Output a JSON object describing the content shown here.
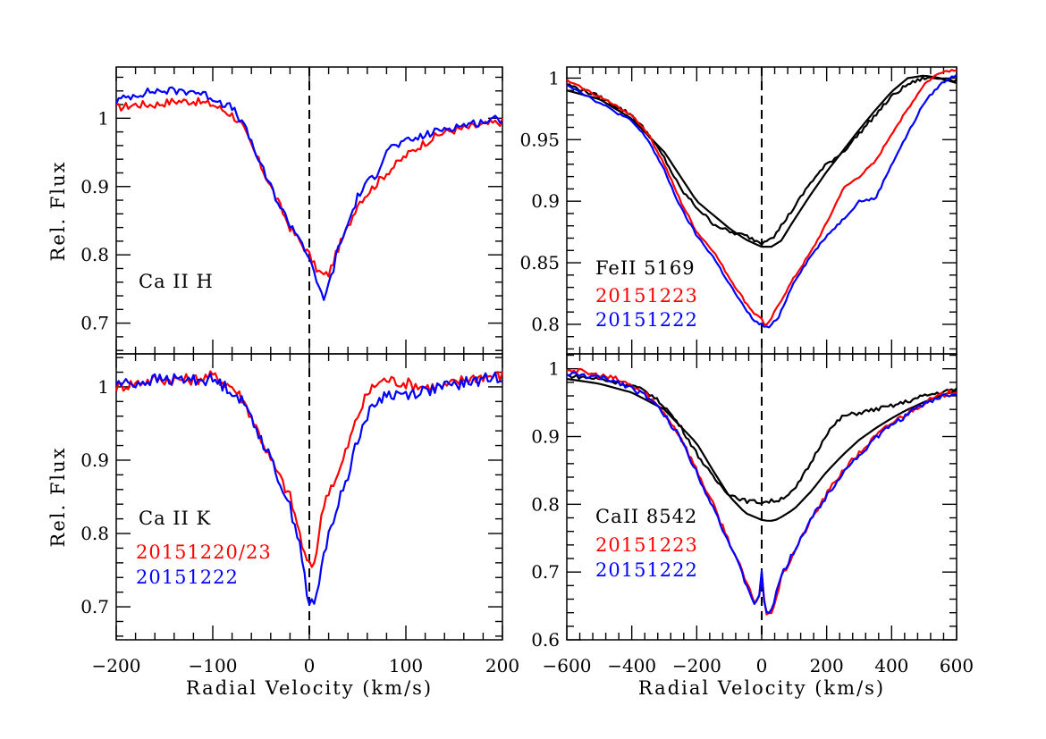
{
  "figure": {
    "xlabel": "Radial Velocity (km/s)",
    "ylabel": "Rel. Flux"
  },
  "chart_data": [
    {
      "id": "caH",
      "type": "line",
      "xlim": [
        -200,
        200
      ],
      "ylim": [
        0.655,
        1.075
      ],
      "xticks": [
        -200,
        -100,
        0,
        100,
        200
      ],
      "xticklabels": [],
      "yticks": [
        0.7,
        0.8,
        0.9,
        1.0
      ],
      "yticklabels": [
        "0.7",
        "0.8",
        "0.9",
        "1"
      ],
      "line_label": "Ca  II  H",
      "legend": [],
      "series": [
        {
          "name": "red",
          "color": "#ff0000",
          "noise": 0.006,
          "x": [
            -200,
            -180,
            -160,
            -140,
            -120,
            -100,
            -80,
            -70,
            -60,
            -50,
            -40,
            -30,
            -20,
            -10,
            0,
            5,
            10,
            15,
            20,
            25,
            30,
            40,
            50,
            60,
            70,
            80,
            100,
            120,
            140,
            160,
            180,
            200
          ],
          "y": [
            1.015,
            1.02,
            1.02,
            1.025,
            1.025,
            1.02,
            1.005,
            0.99,
            0.96,
            0.93,
            0.9,
            0.87,
            0.84,
            0.82,
            0.8,
            0.785,
            0.775,
            0.77,
            0.772,
            0.79,
            0.81,
            0.84,
            0.875,
            0.89,
            0.905,
            0.92,
            0.945,
            0.965,
            0.98,
            0.985,
            0.99,
            0.995
          ]
        },
        {
          "name": "blue",
          "color": "#0000ff",
          "noise": 0.006,
          "x": [
            -200,
            -180,
            -160,
            -140,
            -120,
            -100,
            -80,
            -70,
            -60,
            -50,
            -40,
            -30,
            -20,
            -10,
            0,
            5,
            10,
            15,
            20,
            25,
            30,
            40,
            50,
            60,
            70,
            80,
            100,
            120,
            140,
            160,
            180,
            200
          ],
          "y": [
            1.025,
            1.035,
            1.04,
            1.04,
            1.04,
            1.03,
            1.015,
            0.995,
            0.965,
            0.93,
            0.9,
            0.87,
            0.845,
            0.825,
            0.795,
            0.77,
            0.75,
            0.738,
            0.755,
            0.78,
            0.81,
            0.845,
            0.885,
            0.905,
            0.92,
            0.955,
            0.965,
            0.975,
            0.985,
            0.99,
            0.995,
            1.0
          ]
        }
      ]
    },
    {
      "id": "caK",
      "type": "line",
      "xlim": [
        -200,
        200
      ],
      "ylim": [
        0.655,
        1.045
      ],
      "xticks": [
        -200,
        -100,
        0,
        100,
        200
      ],
      "xticklabels": [
        "-200",
        "-100",
        "0",
        "100",
        "200"
      ],
      "yticks": [
        0.7,
        0.8,
        0.9,
        1.0
      ],
      "yticklabels": [
        "0.7",
        "0.8",
        "0.9",
        "1"
      ],
      "line_label": "Ca  II  K",
      "legend": [
        {
          "text": "20151220/23",
          "color": "#ff0000"
        },
        {
          "text": "20151222",
          "color": "#0000ff"
        }
      ],
      "series": [
        {
          "name": "red",
          "color": "#ff0000",
          "noise": 0.008,
          "x": [
            -200,
            -180,
            -160,
            -140,
            -120,
            -100,
            -80,
            -70,
            -60,
            -50,
            -40,
            -30,
            -20,
            -10,
            -5,
            0,
            5,
            10,
            15,
            20,
            30,
            40,
            50,
            60,
            70,
            80,
            100,
            120,
            140,
            160,
            180,
            200
          ],
          "y": [
            1.0,
            1.005,
            1.01,
            1.01,
            1.01,
            1.015,
            1.0,
            0.985,
            0.96,
            0.93,
            0.9,
            0.875,
            0.85,
            0.8,
            0.77,
            0.755,
            0.76,
            0.8,
            0.84,
            0.86,
            0.88,
            0.92,
            0.96,
            0.99,
            1.005,
            1.01,
            1.005,
            1.0,
            1.0,
            1.01,
            1.015,
            1.015
          ]
        },
        {
          "name": "blue",
          "color": "#0000ff",
          "noise": 0.008,
          "x": [
            -200,
            -180,
            -160,
            -140,
            -120,
            -100,
            -80,
            -70,
            -60,
            -50,
            -40,
            -30,
            -20,
            -10,
            -5,
            0,
            5,
            10,
            15,
            20,
            30,
            40,
            50,
            60,
            70,
            80,
            100,
            120,
            140,
            160,
            180,
            200
          ],
          "y": [
            1.005,
            1.005,
            1.01,
            1.01,
            1.01,
            1.01,
            0.995,
            0.98,
            0.96,
            0.93,
            0.9,
            0.87,
            0.835,
            0.79,
            0.74,
            0.702,
            0.705,
            0.73,
            0.77,
            0.8,
            0.84,
            0.88,
            0.93,
            0.96,
            0.98,
            0.99,
            0.99,
            0.995,
            1.0,
            1.005,
            1.01,
            1.015
          ]
        }
      ]
    },
    {
      "id": "fe",
      "type": "line",
      "xlim": [
        -600,
        600
      ],
      "ylim": [
        0.776,
        1.009
      ],
      "xticks": [
        -600,
        -400,
        -200,
        0,
        200,
        400,
        600
      ],
      "xticklabels": [],
      "yticks": [
        0.8,
        0.85,
        0.9,
        0.95,
        1.0
      ],
      "yticklabels": [
        "0.8",
        "0.85",
        "0.9",
        "0.95",
        "1"
      ],
      "line_label": "FeII  5169",
      "legend": [
        {
          "text": "20151223",
          "color": "#ff0000"
        },
        {
          "text": "20151222",
          "color": "#0000ff"
        }
      ],
      "series": [
        {
          "name": "black-observed",
          "color": "#000000",
          "noise": 0.0015,
          "x": [
            -600,
            -500,
            -400,
            -350,
            -300,
            -250,
            -200,
            -150,
            -100,
            -50,
            0,
            20,
            40,
            60,
            100,
            150,
            200,
            250,
            300,
            350,
            400,
            450,
            500,
            550,
            600
          ],
          "y": [
            0.995,
            0.985,
            0.97,
            0.955,
            0.935,
            0.91,
            0.895,
            0.882,
            0.875,
            0.872,
            0.866,
            0.87,
            0.872,
            0.88,
            0.895,
            0.915,
            0.93,
            0.94,
            0.955,
            0.97,
            0.985,
            0.995,
            1.0,
            1.0,
            0.998
          ]
        },
        {
          "name": "black-model",
          "color": "#000000",
          "noise": 0,
          "x": [
            -600,
            -500,
            -400,
            -300,
            -200,
            -100,
            -50,
            0,
            30,
            60,
            100,
            150,
            200,
            250,
            300,
            350,
            400,
            450,
            500,
            550,
            600
          ],
          "y": [
            0.99,
            0.983,
            0.967,
            0.94,
            0.9,
            0.878,
            0.869,
            0.863,
            0.863,
            0.868,
            0.885,
            0.905,
            0.924,
            0.941,
            0.958,
            0.974,
            0.989,
            1.0,
            1.002,
            1.0,
            0.996
          ]
        },
        {
          "name": "red",
          "color": "#ff0000",
          "noise": 0.001,
          "x": [
            -600,
            -500,
            -400,
            -350,
            -300,
            -250,
            -200,
            -150,
            -100,
            -50,
            -20,
            0,
            10,
            20,
            50,
            100,
            150,
            200,
            250,
            300,
            350,
            400,
            450,
            500,
            550,
            600
          ],
          "y": [
            0.998,
            0.985,
            0.97,
            0.955,
            0.93,
            0.9,
            0.875,
            0.86,
            0.838,
            0.818,
            0.808,
            0.805,
            0.798,
            0.8,
            0.815,
            0.838,
            0.858,
            0.882,
            0.91,
            0.92,
            0.932,
            0.955,
            0.975,
            0.995,
            1.005,
            1.007
          ]
        },
        {
          "name": "blue",
          "color": "#0000ff",
          "noise": 0.001,
          "x": [
            -600,
            -500,
            -400,
            -350,
            -300,
            -250,
            -200,
            -150,
            -100,
            -50,
            -20,
            0,
            10,
            20,
            50,
            100,
            150,
            200,
            250,
            300,
            350,
            400,
            450,
            500,
            550,
            600
          ],
          "y": [
            0.995,
            0.98,
            0.965,
            0.95,
            0.925,
            0.895,
            0.872,
            0.855,
            0.833,
            0.812,
            0.802,
            0.8,
            0.798,
            0.797,
            0.805,
            0.835,
            0.855,
            0.872,
            0.885,
            0.9,
            0.902,
            0.93,
            0.955,
            0.98,
            0.995,
            1.003
          ]
        }
      ]
    },
    {
      "id": "ca8542",
      "type": "line",
      "xlim": [
        -600,
        600
      ],
      "ylim": [
        0.6,
        1.022
      ],
      "xticks": [
        -600,
        -400,
        -200,
        0,
        200,
        400,
        600
      ],
      "xticklabels": [
        "-600",
        "-400",
        "-200",
        "0",
        "200",
        "400",
        "600"
      ],
      "yticks": [
        0.6,
        0.7,
        0.8,
        0.9,
        1.0
      ],
      "yticklabels": [
        "0.6",
        "0.7",
        "0.8",
        "0.9",
        "1"
      ],
      "line_label": "CaII  8542",
      "legend": [
        {
          "text": "20151223",
          "color": "#ff0000"
        },
        {
          "text": "20151222",
          "color": "#0000ff"
        }
      ],
      "series": [
        {
          "name": "black-observed",
          "color": "#000000",
          "noise": 0.003,
          "x": [
            -600,
            -500,
            -400,
            -350,
            -300,
            -250,
            -200,
            -150,
            -100,
            -50,
            0,
            50,
            100,
            150,
            200,
            250,
            300,
            350,
            400,
            450,
            500,
            550,
            600
          ],
          "y": [
            0.99,
            0.985,
            0.975,
            0.965,
            0.945,
            0.915,
            0.875,
            0.84,
            0.815,
            0.805,
            0.803,
            0.806,
            0.82,
            0.86,
            0.905,
            0.93,
            0.935,
            0.94,
            0.945,
            0.952,
            0.96,
            0.965,
            0.97
          ]
        },
        {
          "name": "black-model",
          "color": "#000000",
          "noise": 0,
          "x": [
            -600,
            -500,
            -400,
            -300,
            -200,
            -150,
            -100,
            -50,
            0,
            25,
            50,
            100,
            150,
            200,
            250,
            300,
            350,
            400,
            450,
            500,
            550,
            600
          ],
          "y": [
            0.985,
            0.978,
            0.965,
            0.94,
            0.89,
            0.85,
            0.812,
            0.787,
            0.777,
            0.775,
            0.778,
            0.793,
            0.818,
            0.848,
            0.873,
            0.895,
            0.912,
            0.927,
            0.94,
            0.951,
            0.96,
            0.968
          ]
        },
        {
          "name": "red",
          "color": "#ff0000",
          "noise": 0.004,
          "x": [
            -600,
            -550,
            -500,
            -450,
            -400,
            -350,
            -300,
            -250,
            -200,
            -150,
            -100,
            -60,
            -40,
            -20,
            -5,
            0,
            5,
            15,
            25,
            40,
            60,
            100,
            150,
            200,
            250,
            300,
            350,
            400,
            450,
            500,
            550,
            600
          ],
          "y": [
            1.0,
            0.995,
            0.99,
            0.985,
            0.975,
            0.96,
            0.935,
            0.9,
            0.85,
            0.8,
            0.745,
            0.7,
            0.675,
            0.655,
            0.668,
            0.7,
            0.665,
            0.638,
            0.635,
            0.655,
            0.69,
            0.73,
            0.775,
            0.815,
            0.85,
            0.875,
            0.9,
            0.92,
            0.935,
            0.95,
            0.96,
            0.968
          ]
        },
        {
          "name": "blue",
          "color": "#0000ff",
          "noise": 0.004,
          "x": [
            -600,
            -550,
            -500,
            -450,
            -400,
            -350,
            -300,
            -250,
            -200,
            -150,
            -100,
            -60,
            -40,
            -20,
            -5,
            0,
            5,
            15,
            25,
            40,
            60,
            100,
            150,
            200,
            250,
            300,
            350,
            400,
            450,
            500,
            550,
            600
          ],
          "y": [
            0.992,
            0.99,
            0.987,
            0.982,
            0.972,
            0.958,
            0.932,
            0.898,
            0.847,
            0.797,
            0.742,
            0.697,
            0.672,
            0.653,
            0.665,
            0.698,
            0.663,
            0.642,
            0.64,
            0.66,
            0.693,
            0.732,
            0.777,
            0.812,
            0.848,
            0.872,
            0.897,
            0.917,
            0.933,
            0.948,
            0.958,
            0.965
          ]
        }
      ]
    }
  ]
}
